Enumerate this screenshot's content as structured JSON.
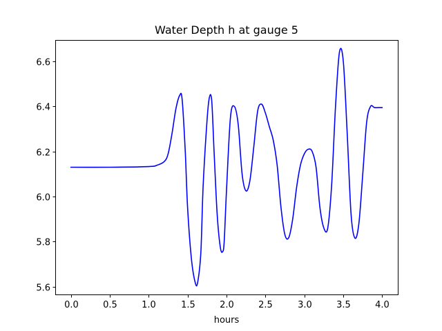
{
  "chart_data": {
    "type": "line",
    "title": "Water Depth h at gauge 5",
    "xlabel": "hours",
    "ylabel": "",
    "xlim": [
      -0.2,
      4.2
    ],
    "ylim": [
      5.565,
      6.695
    ],
    "xticks": [
      0.0,
      0.5,
      1.0,
      1.5,
      2.0,
      2.5,
      3.0,
      3.5,
      4.0
    ],
    "xtick_labels": [
      "0.0",
      "0.5",
      "1.0",
      "1.5",
      "2.0",
      "2.5",
      "3.0",
      "3.5",
      "4.0"
    ],
    "yticks": [
      5.6,
      5.8,
      6.0,
      6.2,
      6.4,
      6.6
    ],
    "ytick_labels": [
      "5.6",
      "5.8",
      "6.0",
      "6.2",
      "6.4",
      "6.6"
    ],
    "grid": false,
    "series": [
      {
        "color": "#0000ff",
        "x": [
          0.0,
          0.5,
          1.0,
          1.1,
          1.2,
          1.25,
          1.3,
          1.35,
          1.4,
          1.43,
          1.47,
          1.5,
          1.55,
          1.6,
          1.63,
          1.67,
          1.7,
          1.75,
          1.78,
          1.81,
          1.84,
          1.88,
          1.92,
          1.95,
          1.97,
          2.0,
          2.05,
          2.1,
          2.15,
          2.2,
          2.25,
          2.3,
          2.35,
          2.4,
          2.45,
          2.5,
          2.55,
          2.6,
          2.65,
          2.7,
          2.75,
          2.8,
          2.85,
          2.9,
          2.95,
          3.0,
          3.05,
          3.1,
          3.15,
          3.2,
          3.25,
          3.3,
          3.35,
          3.4,
          3.45,
          3.5,
          3.55,
          3.6,
          3.65,
          3.7,
          3.75,
          3.8,
          3.85,
          3.9,
          3.95,
          3.98,
          4.0
        ],
        "y": [
          6.13,
          6.13,
          6.133,
          6.138,
          6.155,
          6.19,
          6.28,
          6.39,
          6.45,
          6.43,
          6.2,
          5.95,
          5.72,
          5.615,
          5.62,
          5.75,
          6.05,
          6.34,
          6.44,
          6.425,
          6.2,
          5.92,
          5.775,
          5.755,
          5.8,
          6.03,
          6.35,
          6.4,
          6.32,
          6.1,
          6.025,
          6.07,
          6.22,
          6.38,
          6.41,
          6.37,
          6.31,
          6.25,
          6.14,
          5.95,
          5.83,
          5.818,
          5.9,
          6.04,
          6.14,
          6.19,
          6.21,
          6.2,
          6.13,
          5.95,
          5.86,
          5.86,
          6.05,
          6.4,
          6.64,
          6.6,
          6.28,
          5.92,
          5.815,
          5.88,
          6.1,
          6.33,
          6.4,
          6.395,
          6.395,
          6.395,
          6.395
        ]
      }
    ]
  }
}
